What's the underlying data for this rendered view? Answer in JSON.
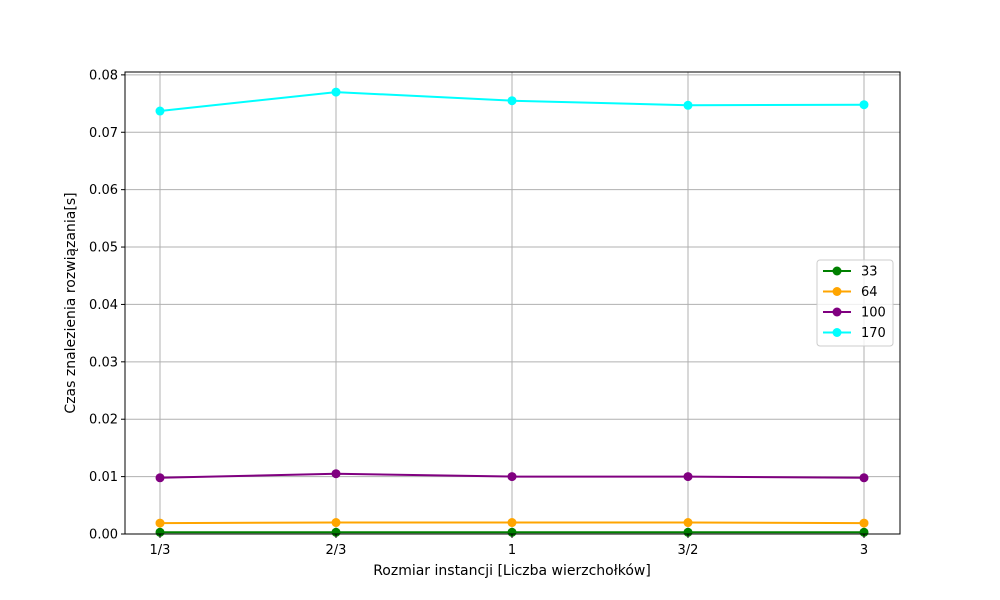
{
  "chart_data": {
    "type": "line",
    "categories": [
      "1/3",
      "2/3",
      "1",
      "3/2",
      "3"
    ],
    "xlabel": "Rozmiar instancji [Liczba wierzchołków]",
    "ylabel": "Czas znalezienia rozwiązania[s]",
    "ylim": [
      0,
      0.0805
    ],
    "yticks": [
      0.0,
      0.01,
      0.02,
      0.03,
      0.04,
      0.05,
      0.06,
      0.07,
      0.08
    ],
    "ytick_labels": [
      "0.00",
      "0.01",
      "0.02",
      "0.03",
      "0.04",
      "0.05",
      "0.06",
      "0.07",
      "0.08"
    ],
    "grid": true,
    "legend_position": "center-right",
    "series": [
      {
        "name": "33",
        "color": "#008000",
        "values": [
          0.0003,
          0.0003,
          0.0003,
          0.0003,
          0.0003
        ]
      },
      {
        "name": "64",
        "color": "#FFA500",
        "values": [
          0.0019,
          0.002,
          0.002,
          0.002,
          0.0019
        ]
      },
      {
        "name": "100",
        "color": "#800080",
        "values": [
          0.0098,
          0.0105,
          0.01,
          0.01,
          0.0098
        ]
      },
      {
        "name": "170",
        "color": "#00FFFF",
        "values": [
          0.0737,
          0.077,
          0.0755,
          0.0747,
          0.0748
        ]
      }
    ]
  }
}
